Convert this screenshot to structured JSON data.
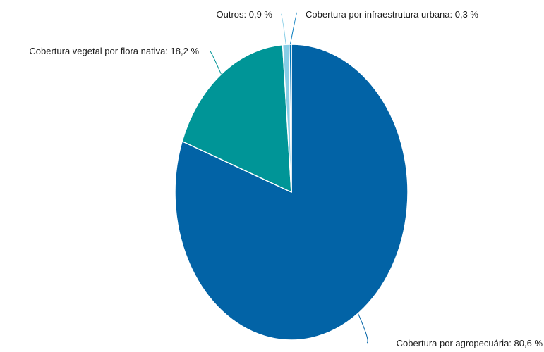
{
  "chart_data": {
    "type": "pie",
    "title": "",
    "slices": [
      {
        "label": "Cobertura por agropecuária",
        "value": 80.6,
        "display": "Cobertura por agropecuária: 80,6 %",
        "color": "#0263a6"
      },
      {
        "label": "Cobertura vegetal por flora nativa",
        "value": 18.2,
        "display": "Cobertura vegetal por flora nativa: 18,2 %",
        "color": "#009597"
      },
      {
        "label": "Outros",
        "value": 0.9,
        "display": "Outros: 0,9 %",
        "color": "#87cde6"
      },
      {
        "label": "Cobertura por infraestrutura urbana",
        "value": 0.3,
        "display": "Cobertura por infraestrutura urbana: 0,3 %",
        "color": "#0078bc"
      }
    ],
    "legend": "none",
    "data_labels": "outside with leader lines"
  }
}
